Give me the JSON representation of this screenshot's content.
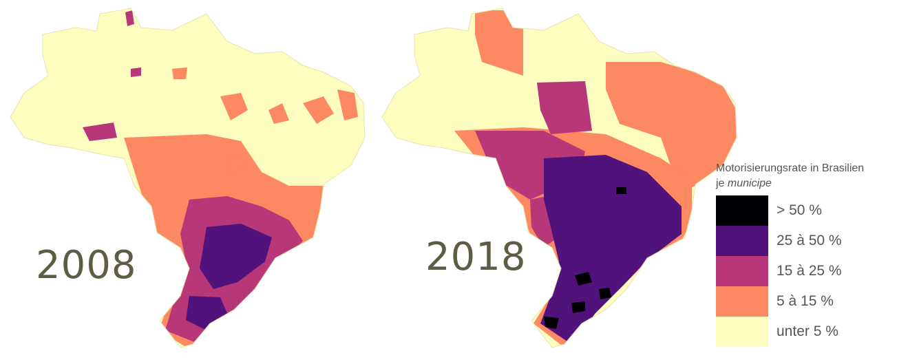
{
  "maps": [
    {
      "year": "2008"
    },
    {
      "year": "2018"
    }
  ],
  "year_label_color": "#5e5c45",
  "legend": {
    "title_line1": "Motorisierungsrate in Brasilien",
    "title_prefix": "je",
    "title_italic": "municipe",
    "classes": [
      {
        "label": "> 50 %",
        "color": "#000004"
      },
      {
        "label": "25 à 50 %",
        "color": "#51127c"
      },
      {
        "label": "15 à 25 %",
        "color": "#b73779"
      },
      {
        "label": "5 à 15 %",
        "color": "#fc8961"
      },
      {
        "label": "unter 5 %",
        "color": "#fcfdbf"
      }
    ]
  }
}
